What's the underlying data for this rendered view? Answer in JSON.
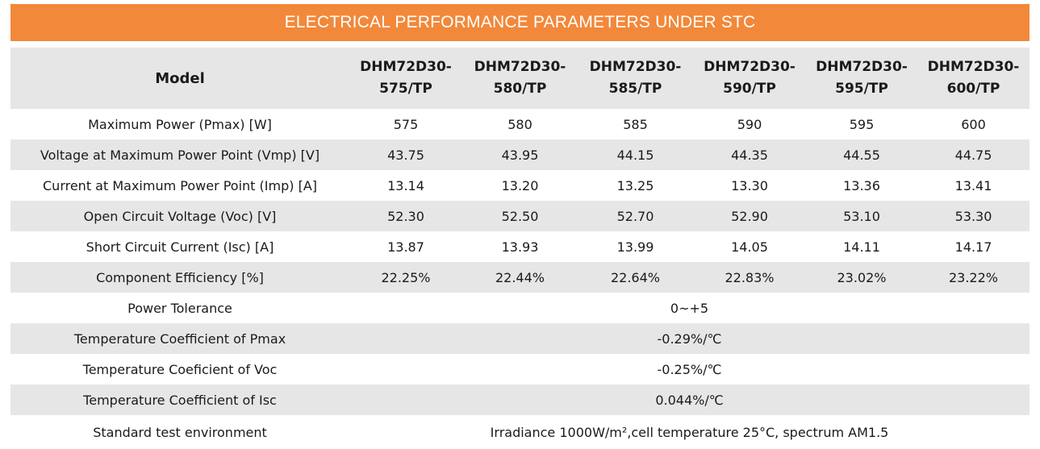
{
  "title": "ELECTRICAL PERFORMANCE PARAMETERS UNDER STC",
  "header": {
    "label": "Model",
    "models": [
      [
        "DHM72D30-",
        "575/TP"
      ],
      [
        "DHM72D30-",
        "580/TP"
      ],
      [
        "DHM72D30-",
        "585/TP"
      ],
      [
        "DHM72D30-",
        "590/TP"
      ],
      [
        "DHM72D30-",
        "595/TP"
      ],
      [
        "DHM72D30-",
        "600/TP"
      ]
    ]
  },
  "rows": [
    {
      "label": "Maximum Power (Pmax) [W]",
      "values": [
        "575",
        "580",
        "585",
        "590",
        "595",
        "600"
      ]
    },
    {
      "label": "Voltage at Maximum Power Point (Vmp) [V]",
      "values": [
        "43.75",
        "43.95",
        "44.15",
        "44.35",
        "44.55",
        "44.75"
      ]
    },
    {
      "label": "Current at Maximum Power Point (Imp) [A]",
      "values": [
        "13.14",
        "13.20",
        "13.25",
        "13.30",
        "13.36",
        "13.41"
      ]
    },
    {
      "label": "Open Circuit Voltage (Voc) [V]",
      "values": [
        "52.30",
        "52.50",
        "52.70",
        "52.90",
        "53.10",
        "53.30"
      ]
    },
    {
      "label": "Short Circuit Current (Isc) [A]",
      "values": [
        "13.87",
        "13.93",
        "13.99",
        "14.05",
        "14.11",
        "14.17"
      ]
    },
    {
      "label": "Component Efficiency [%]",
      "values": [
        "22.25%",
        "22.44%",
        "22.64%",
        "22.83%",
        "23.02%",
        "23.22%"
      ]
    },
    {
      "label": "Power Tolerance",
      "value": "0~+5"
    },
    {
      "label": "Temperature Coefficient of Pmax",
      "value": "-0.29%/℃"
    },
    {
      "label": "Temperature Coeficient of Voc",
      "value": "-0.25%/℃"
    },
    {
      "label": "Temperature Coefficient of Isc",
      "value": "0.044%/℃"
    },
    {
      "label": "Standard test environment",
      "value": "Irradiance 1000W/m²,cell temperature 25°C, spectrum AM1.5"
    }
  ],
  "colors": {
    "banner": "#f2883a",
    "row_shade": "#e6e6e6"
  }
}
